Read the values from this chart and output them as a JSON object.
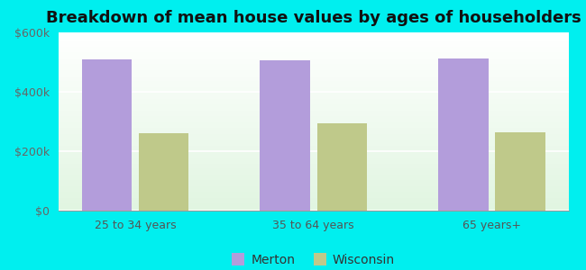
{
  "title": "Breakdown of mean house values by ages of householders",
  "categories": [
    "25 to 34 years",
    "35 to 64 years",
    "65 years+"
  ],
  "merton_values": [
    510000,
    505000,
    512000
  ],
  "wisconsin_values": [
    262000,
    295000,
    265000
  ],
  "merton_color": "#b39ddb",
  "wisconsin_color": "#bfc98a",
  "ylim": [
    0,
    600000
  ],
  "yticks": [
    0,
    200000,
    400000,
    600000
  ],
  "ytick_labels": [
    "$0",
    "$200k",
    "$400k",
    "$600k"
  ],
  "outer_bg": "#00efef",
  "bar_width": 0.28,
  "legend_labels": [
    "Merton",
    "Wisconsin"
  ],
  "title_fontsize": 13,
  "tick_fontsize": 9,
  "legend_fontsize": 10
}
